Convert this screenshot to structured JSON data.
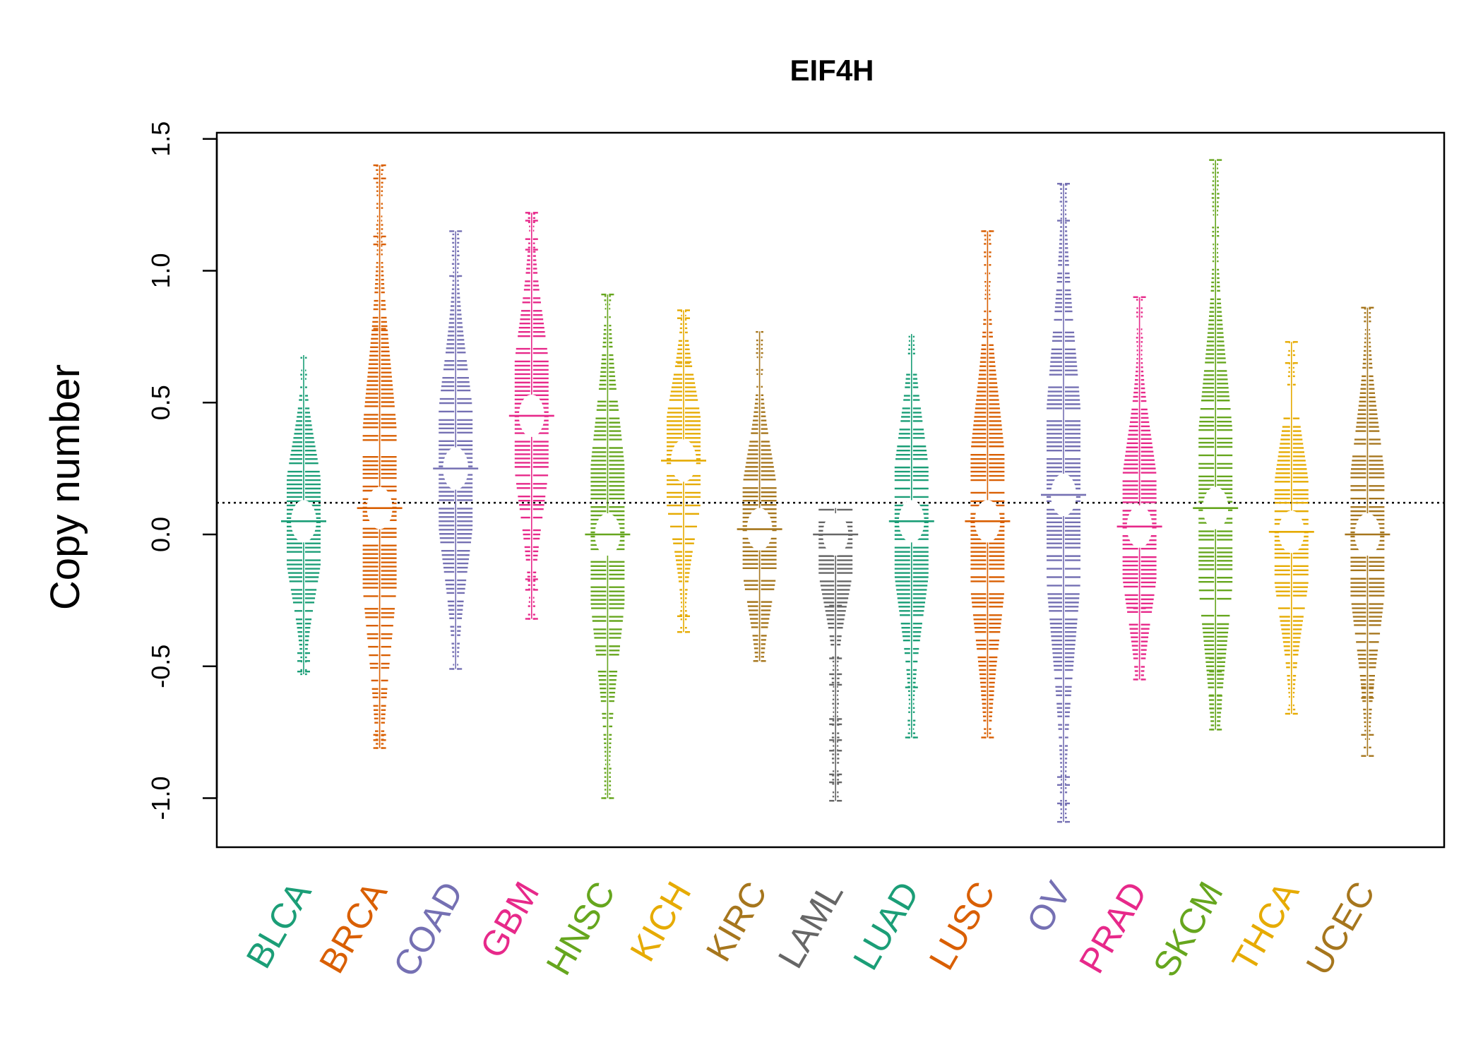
{
  "chart_data": {
    "type": "violin",
    "title": "EIF4H",
    "ylabel": "Copy number",
    "xlabel": "",
    "ylim": [
      -1.2,
      1.5
    ],
    "yticks": [
      -1.0,
      -0.5,
      0.0,
      0.5,
      1.0,
      1.5
    ],
    "ytick_labels": [
      "-1.0",
      "-0.5",
      "0.0",
      "0.5",
      "1.0",
      "1.5"
    ],
    "reference_line": 0.12,
    "reference_line_style": "dotted",
    "grid": false,
    "legend": "none",
    "categories": [
      "BLCA",
      "BRCA",
      "COAD",
      "GBM",
      "HNSC",
      "KICH",
      "KIRC",
      "LAML",
      "LUAD",
      "LUSC",
      "OV",
      "PRAD",
      "SKCM",
      "THCA",
      "UCEC"
    ],
    "series": [
      {
        "category": "BLCA",
        "color": "#1B9E77",
        "min": -0.53,
        "max": 0.68,
        "mode": 0.05,
        "outliers": [
          -0.45,
          -0.48,
          -0.52
        ]
      },
      {
        "category": "BRCA",
        "color": "#D95F02",
        "min": -0.81,
        "max": 1.4,
        "mode": 0.1,
        "outliers": [
          0.78,
          1.1,
          1.13,
          1.35,
          1.4,
          -0.76,
          -0.78,
          -0.81
        ]
      },
      {
        "category": "COAD",
        "color": "#7570B3",
        "min": -0.51,
        "max": 1.15,
        "mode": 0.25,
        "outliers": [
          0.98,
          1.15,
          -0.51
        ]
      },
      {
        "category": "GBM",
        "color": "#E7298A",
        "min": -0.32,
        "max": 1.22,
        "mode": 0.45,
        "outliers": [
          1.08,
          1.12,
          1.19,
          1.22,
          -0.17,
          -0.21,
          -0.32
        ]
      },
      {
        "category": "HNSC",
        "color": "#66A61E",
        "min": -1.0,
        "max": 0.91,
        "mode": 0.0,
        "outliers": [
          0.91,
          -1.0
        ]
      },
      {
        "category": "KICH",
        "color": "#E6AB02",
        "min": -0.37,
        "max": 0.85,
        "mode": 0.28,
        "outliers": [
          0.65,
          0.82,
          0.85,
          -0.31,
          -0.37
        ]
      },
      {
        "category": "KIRC",
        "color": "#A6761D",
        "min": -0.48,
        "max": 0.77,
        "mode": 0.02,
        "outliers": [
          -0.48
        ]
      },
      {
        "category": "LAML",
        "color": "#666666",
        "min": -1.01,
        "max": 0.1,
        "mode": 0.0,
        "outliers": [
          -0.27,
          -0.47,
          -0.53,
          -0.57,
          -0.7,
          -0.72,
          -0.78,
          -0.82,
          -0.91,
          -0.94,
          -1.01
        ]
      },
      {
        "category": "LUAD",
        "color": "#1B9E77",
        "min": -0.77,
        "max": 0.76,
        "mode": 0.05,
        "outliers": [
          -0.58,
          -0.77
        ]
      },
      {
        "category": "LUSC",
        "color": "#D95F02",
        "min": -0.77,
        "max": 1.15,
        "mode": 0.05,
        "outliers": [
          1.15,
          -0.61,
          -0.77
        ]
      },
      {
        "category": "OV",
        "color": "#7570B3",
        "min": -1.09,
        "max": 1.33,
        "mode": 0.15,
        "outliers": [
          1.19,
          1.33,
          -0.92,
          -0.95,
          -1.02,
          -1.09
        ]
      },
      {
        "category": "PRAD",
        "color": "#E7298A",
        "min": -0.55,
        "max": 0.9,
        "mode": 0.03,
        "outliers": [
          0.9,
          -0.28,
          -0.55
        ]
      },
      {
        "category": "SKCM",
        "color": "#66A61E",
        "min": -0.74,
        "max": 1.42,
        "mode": 0.1,
        "outliers": [
          1.42,
          -0.47,
          -0.52,
          -0.61,
          -0.66,
          -0.74
        ]
      },
      {
        "category": "THCA",
        "color": "#E6AB02",
        "min": -0.68,
        "max": 0.73,
        "mode": 0.01,
        "outliers": [
          0.65,
          0.73,
          -0.68
        ]
      },
      {
        "category": "UCEC",
        "color": "#A6761D",
        "min": -0.84,
        "max": 0.86,
        "mode": 0.0,
        "outliers": [
          0.86,
          -0.58,
          -0.62,
          -0.76,
          -0.84
        ]
      }
    ]
  }
}
